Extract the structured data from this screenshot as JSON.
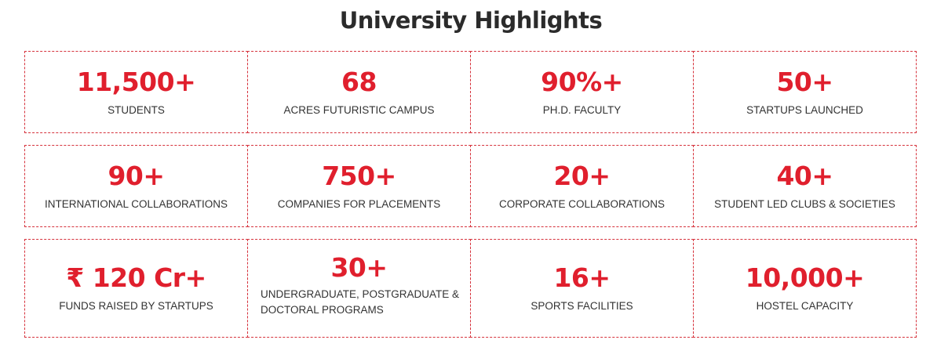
{
  "title": "University Highlights",
  "rows": [
    [
      {
        "value": "11,500+",
        "label": "STUDENTS"
      },
      {
        "value": "68",
        "label": "ACRES FUTURISTIC CAMPUS"
      },
      {
        "value": "90%+",
        "label": "PH.D. FACULTY"
      },
      {
        "value": "50+",
        "label": "STARTUPS LAUNCHED"
      }
    ],
    [
      {
        "value": "90+",
        "label": "INTERNATIONAL COLLABORATIONS"
      },
      {
        "value": "750+",
        "label": "COMPANIES FOR PLACEMENTS"
      },
      {
        "value": "20+",
        "label": "CORPORATE COLLABORATIONS"
      },
      {
        "value": "40+",
        "label": "STUDENT LED CLUBS & SOCIETIES"
      }
    ],
    [
      {
        "value": "₹ 120 Cr+",
        "label": "FUNDS RAISED BY STARTUPS"
      },
      {
        "value": "30+",
        "label": "UNDERGRADUATE, POSTGRADUATE & DOCTORAL PROGRAMS"
      },
      {
        "value": "16+",
        "label": "SPORTS FACILITIES"
      },
      {
        "value": "10,000+",
        "label": "HOSTEL CAPACITY"
      }
    ]
  ],
  "colors": {
    "accent": "#e01f2d",
    "border": "#d6323c",
    "title": "#2b2b2b",
    "label": "#333333"
  }
}
